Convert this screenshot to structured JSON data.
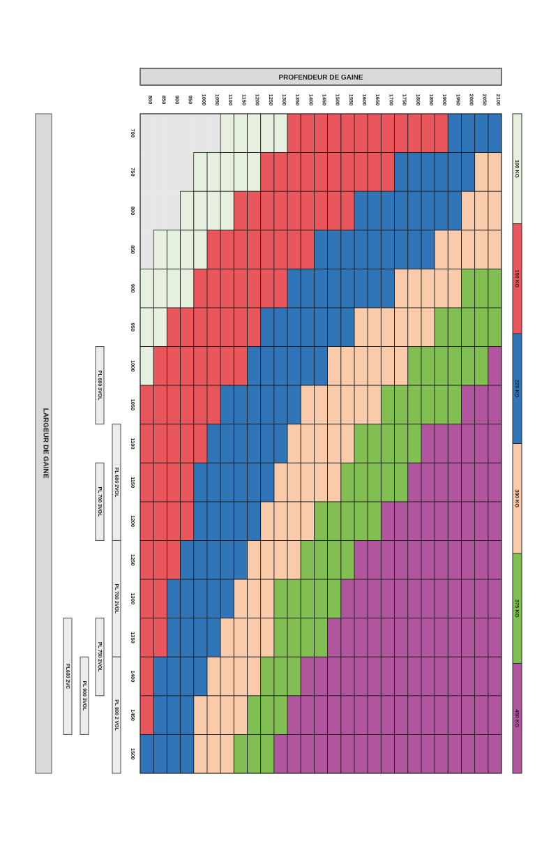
{
  "chart_data": {
    "type": "heatmap",
    "title": "",
    "xlabel": "PROFENDEUR DE GAINE",
    "ylabel": "LARGEUR DE GAINE",
    "depth_values": [
      800,
      850,
      900,
      950,
      1000,
      1050,
      1100,
      1150,
      1200,
      1250,
      1300,
      1350,
      1400,
      1450,
      1500,
      1550,
      1600,
      1650,
      1700,
      1750,
      1800,
      1850,
      1900,
      1950,
      2000,
      2050,
      2100
    ],
    "width_values": [
      700,
      750,
      800,
      850,
      900,
      950,
      1000,
      1050,
      1100,
      1150,
      1200,
      1250,
      1300,
      1350,
      1400,
      1450,
      1500
    ],
    "class_colors": {
      "0": "#e6e6e6",
      "100 KG": "#e6f0df",
      "150 KG": "#e9565b",
      "225 KG": "#2f75b8",
      "300 KG": "#f9cbab",
      "375 KG": "#82bf53",
      "450 KG": "#b1559f"
    },
    "class_order": [
      "0",
      "100 KG",
      "150 KG",
      "225 KG",
      "300 KG",
      "375 KG",
      "450 KG"
    ],
    "thresholds": [
      [
        6,
        11,
        23
      ],
      [
        4,
        9,
        19,
        25
      ],
      [
        3,
        7,
        16,
        24
      ],
      [
        1,
        5,
        13,
        22
      ],
      [
        0,
        4,
        11,
        19,
        24
      ],
      [
        0,
        2,
        9,
        16,
        22
      ],
      [
        0,
        1,
        8,
        14,
        20,
        26
      ],
      [
        0,
        0,
        6,
        12,
        18,
        24
      ],
      [
        0,
        0,
        5,
        11,
        16,
        21
      ],
      [
        0,
        0,
        4,
        10,
        15,
        20
      ],
      [
        0,
        0,
        4,
        9,
        13,
        18
      ],
      [
        0,
        0,
        3,
        8,
        12,
        16
      ],
      [
        0,
        0,
        2,
        7,
        10,
        15
      ],
      [
        0,
        0,
        2,
        6,
        10,
        14
      ],
      [
        0,
        0,
        1,
        5,
        9,
        12
      ],
      [
        0,
        0,
        1,
        4,
        8,
        11
      ],
      [
        0,
        0,
        0,
        4,
        7,
        10
      ]
    ],
    "legend": [
      "100 KG",
      "150 KG",
      "225 KG",
      "300 KG",
      "375 KG",
      "450 KG"
    ],
    "legend_colors": [
      "#e6f0df",
      "#e9565b",
      "#2f75b8",
      "#f9cbab",
      "#82bf53",
      "#b1559f"
    ],
    "width_groups": [
      {
        "label": "PL 600 3VOL",
        "start": 1000,
        "end": 1050
      },
      {
        "label": "PL 600 2VOL",
        "start": 1100,
        "end": 1200
      },
      {
        "label": "PL 700 3VOL",
        "start": 1150,
        "end": 1200
      },
      {
        "label": "PL 700 2VOL",
        "start": 1250,
        "end": 1350
      },
      {
        "label": "PL 750 2VOL",
        "start": 1350,
        "end": 1400
      },
      {
        "label": "PL 800 2 VOL",
        "start": 1400,
        "end": 1500
      },
      {
        "label": "PL 900 3VOL",
        "start": 1400,
        "end": 1450
      },
      {
        "label": "PL600 2VC",
        "start": 1350,
        "end": 1450
      }
    ]
  }
}
